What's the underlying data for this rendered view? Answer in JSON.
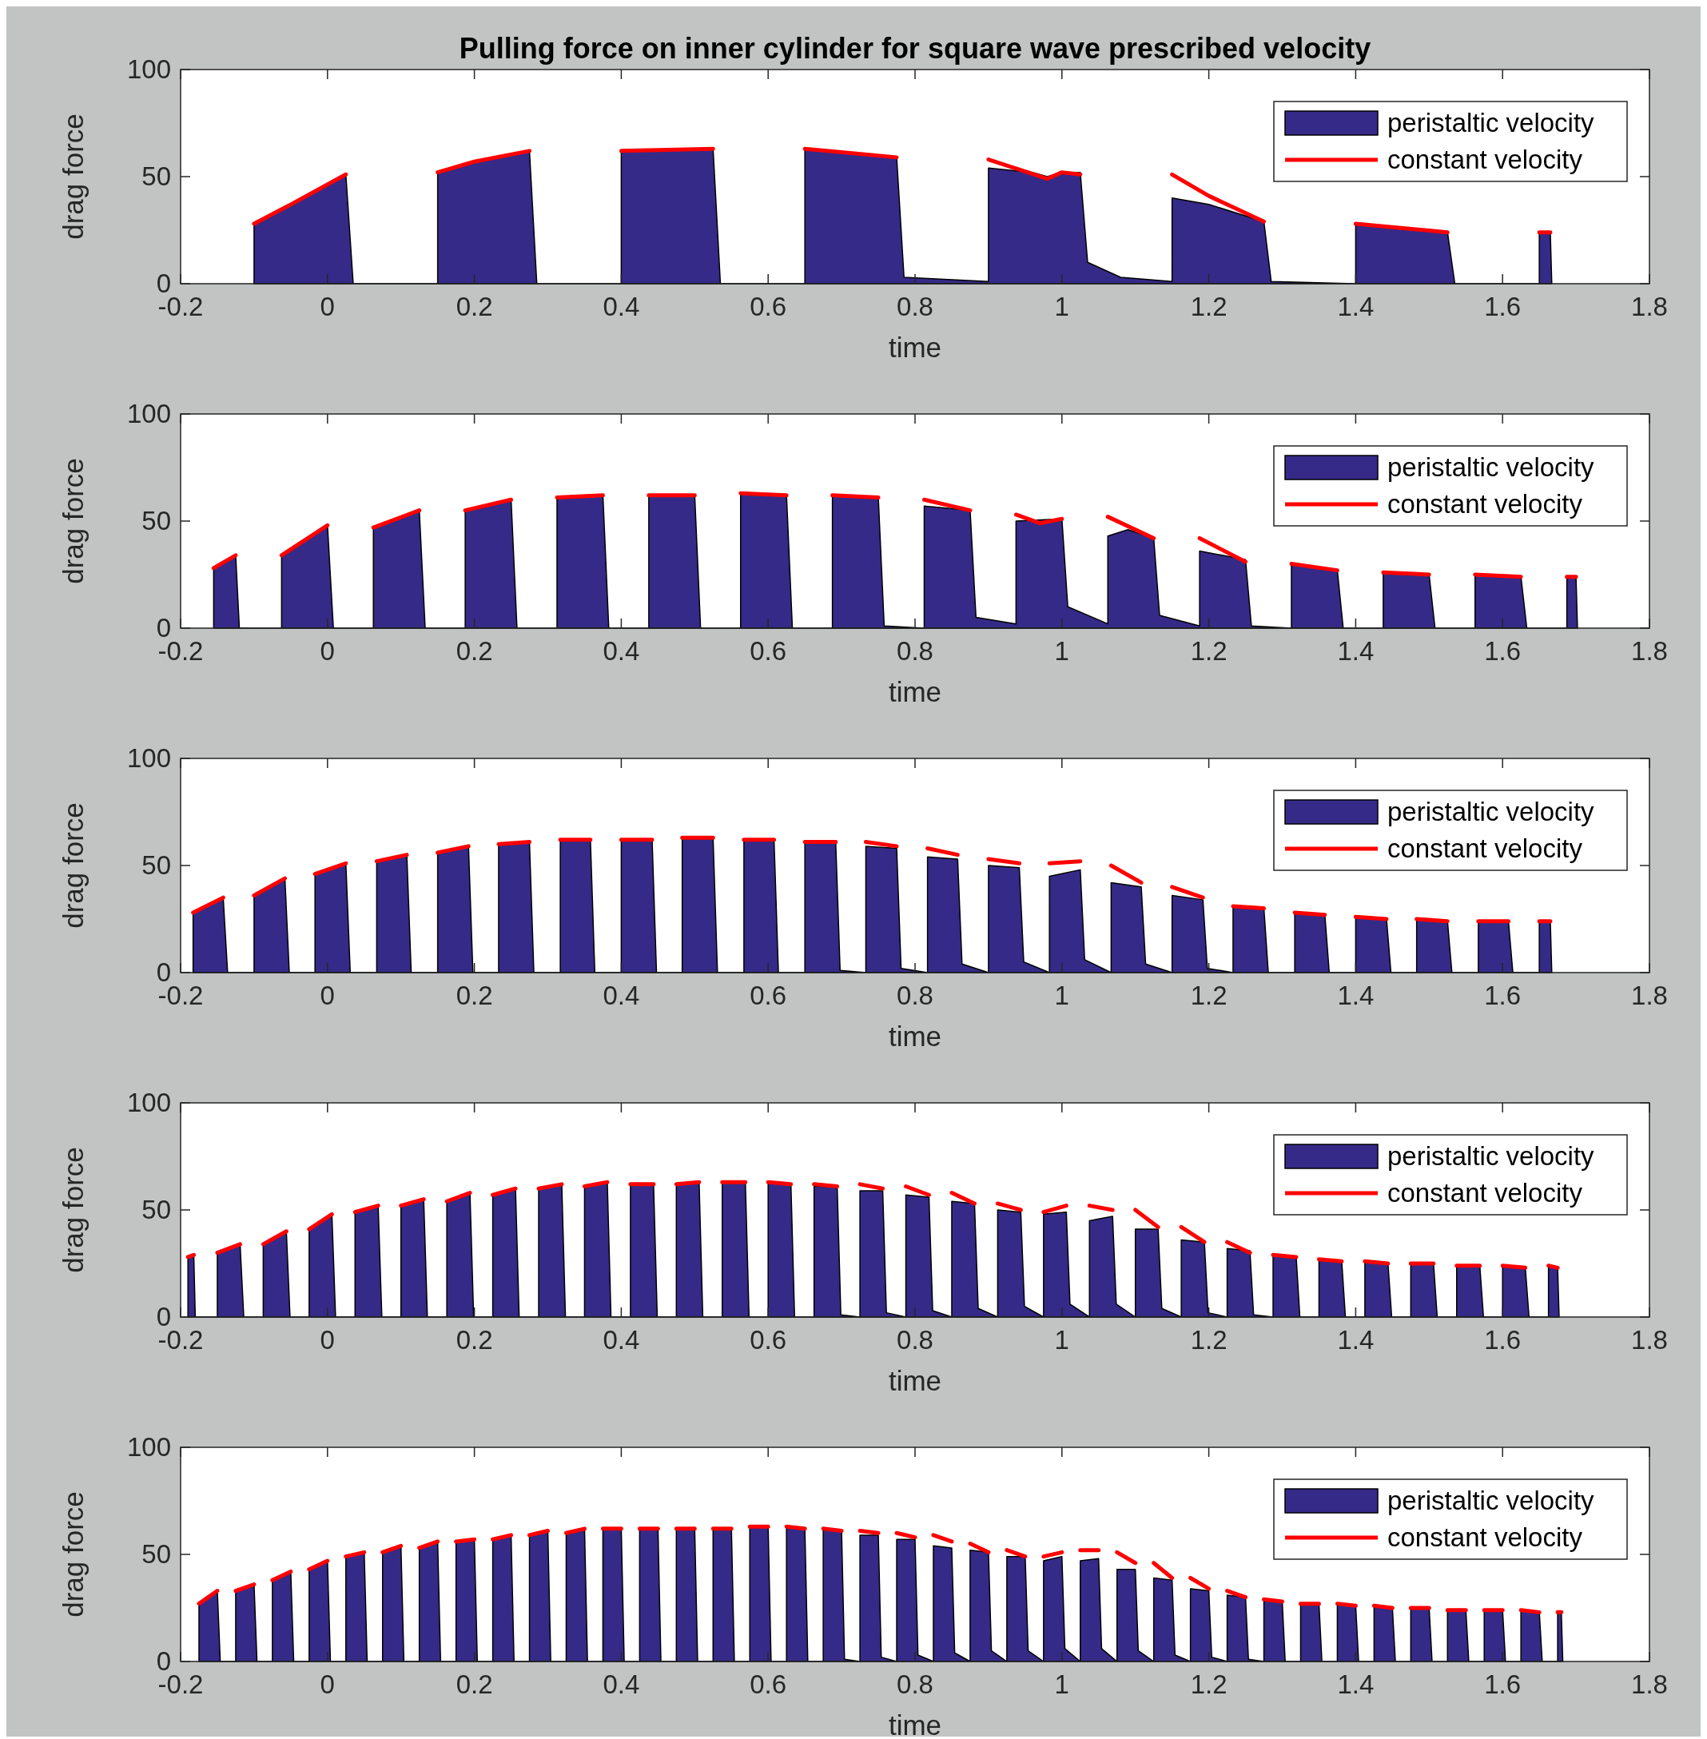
{
  "chart_data": [
    {
      "type": "area",
      "title": "Pulling force on inner cylinder for square wave prescribed velocity",
      "xlabel": "time",
      "ylabel": "drag force",
      "xlim": [
        -0.2,
        1.8
      ],
      "xticks": [
        -0.2,
        0,
        0.2,
        0.4,
        0.6,
        0.8,
        1,
        1.2,
        1.4,
        1.6,
        1.8
      ],
      "ylim": [
        0,
        100
      ],
      "yticks": [
        0,
        50,
        100
      ],
      "legend": "top right",
      "series": [
        {
          "name": "peristaltic velocity",
          "type": "area",
          "color": "#352a87",
          "x": [
            -0.1,
            -0.1,
            -0.05,
            0.025,
            0.035,
            0.15,
            0.15,
            0.2,
            0.275,
            0.285,
            0.4,
            0.4,
            0.525,
            0.535,
            0.65,
            0.65,
            0.775,
            0.785,
            0.9,
            0.9,
            0.96,
            0.98,
            1.0,
            1.025,
            1.035,
            1.08,
            1.15,
            1.15,
            1.2,
            1.275,
            1.285,
            1.4,
            1.4,
            1.525,
            1.535,
            1.65,
            1.65,
            1.665,
            1.667
          ],
          "values": [
            0,
            28,
            37,
            51,
            0,
            0,
            52,
            57,
            62,
            0,
            0,
            62,
            63,
            0,
            0,
            63,
            59,
            3,
            1,
            54,
            52,
            50,
            52,
            52,
            10,
            3,
            1,
            40,
            37,
            29,
            1,
            0,
            28,
            24,
            0,
            0,
            24,
            24,
            0
          ]
        },
        {
          "name": "constant velocity",
          "type": "line",
          "color": "#ff0000",
          "x": [
            -0.1,
            -0.05,
            0.025,
            0.08,
            0.15,
            0.2,
            0.275,
            0.33,
            0.4,
            0.525,
            0.6,
            0.65,
            0.775,
            0.85,
            0.9,
            0.98,
            1.0,
            1.025,
            1.1,
            1.15,
            1.2,
            1.275,
            1.35,
            1.4,
            1.525,
            1.6,
            1.65,
            1.665
          ],
          "values": [
            28,
            37,
            51,
            null,
            52,
            57,
            62,
            null,
            62,
            63,
            null,
            63,
            59,
            null,
            58,
            49,
            52,
            51,
            null,
            51,
            41,
            29,
            null,
            28,
            24,
            null,
            24,
            24
          ]
        }
      ]
    },
    {
      "type": "area",
      "xlabel": "time",
      "ylabel": "drag force",
      "xlim": [
        -0.2,
        1.8
      ],
      "xticks": [
        -0.2,
        0,
        0.2,
        0.4,
        0.6,
        0.8,
        1,
        1.2,
        1.4,
        1.6,
        1.8
      ],
      "ylim": [
        0,
        100
      ],
      "yticks": [
        0,
        50,
        100
      ],
      "legend": "top right",
      "series": [
        {
          "name": "peristaltic velocity",
          "type": "area",
          "color": "#352a87",
          "x": [
            -0.155,
            -0.155,
            -0.125,
            -0.12,
            -0.0625,
            -0.0625,
            0,
            0.008,
            0.0625,
            0.0625,
            0.125,
            0.133,
            0.1875,
            0.1875,
            0.25,
            0.258,
            0.3125,
            0.3125,
            0.375,
            0.383,
            0.4375,
            0.4375,
            0.5,
            0.508,
            0.5625,
            0.5625,
            0.625,
            0.633,
            0.6875,
            0.6875,
            0.75,
            0.758,
            0.8125,
            0.8125,
            0.875,
            0.883,
            0.9375,
            0.9375,
            1.0,
            1.008,
            1.0625,
            1.0625,
            1.09,
            1.125,
            1.133,
            1.1875,
            1.1875,
            1.25,
            1.258,
            1.3125,
            1.3125,
            1.375,
            1.383,
            1.4375,
            1.4375,
            1.5,
            1.508,
            1.5625,
            1.5625,
            1.625,
            1.633,
            1.6875,
            1.6875,
            1.7,
            1.702
          ],
          "values": [
            0,
            28,
            34,
            0,
            0,
            34,
            48,
            0,
            0,
            47,
            55,
            0,
            0,
            55,
            60,
            0,
            0,
            61,
            62,
            0,
            0,
            62,
            62,
            0,
            0,
            63,
            62,
            0,
            0,
            62,
            61,
            1,
            0,
            57,
            55,
            5,
            2,
            50,
            51,
            10,
            2,
            43,
            46,
            42,
            6,
            1,
            36,
            32,
            1,
            0,
            30,
            27,
            0,
            0,
            26,
            25,
            0,
            0,
            25,
            24,
            0,
            0,
            24,
            24,
            0
          ]
        },
        {
          "name": "constant velocity",
          "type": "line",
          "color": "#ff0000",
          "x": [
            -0.155,
            -0.125,
            -0.09,
            -0.0625,
            0,
            0.03,
            0.0625,
            0.125,
            0.16,
            0.1875,
            0.25,
            0.28,
            0.3125,
            0.375,
            0.41,
            0.4375,
            0.5,
            0.53,
            0.5625,
            0.625,
            0.66,
            0.6875,
            0.75,
            0.78,
            0.8125,
            0.875,
            0.91,
            0.9375,
            0.97,
            1.0,
            1.03,
            1.0625,
            1.125,
            1.16,
            1.1875,
            1.25,
            1.28,
            1.3125,
            1.375,
            1.41,
            1.4375,
            1.5,
            1.53,
            1.5625,
            1.625,
            1.66,
            1.6875,
            1.7
          ],
          "values": [
            28,
            34,
            null,
            34,
            48,
            null,
            47,
            55,
            null,
            55,
            60,
            null,
            61,
            62,
            null,
            62,
            62,
            null,
            63,
            62,
            null,
            62,
            61,
            null,
            60,
            55,
            null,
            53,
            49,
            51,
            null,
            52,
            42,
            null,
            42,
            31,
            null,
            30,
            27,
            null,
            26,
            25,
            null,
            25,
            24,
            null,
            24,
            24
          ]
        }
      ]
    },
    {
      "type": "area",
      "xlabel": "time",
      "ylabel": "drag force",
      "xlim": [
        -0.2,
        1.8
      ],
      "xticks": [
        -0.2,
        0,
        0.2,
        0.4,
        0.6,
        0.8,
        1,
        1.2,
        1.4,
        1.6,
        1.8
      ],
      "ylim": [
        0,
        100
      ],
      "yticks": [
        0,
        50,
        100
      ],
      "legend": "top right",
      "series": [
        {
          "name": "peristaltic velocity",
          "type": "area",
          "color": "#352a87",
          "x": [
            -0.183,
            -0.183,
            -0.142,
            -0.136,
            -0.1,
            -0.1,
            -0.058,
            -0.052,
            -0.017,
            -0.017,
            0.025,
            0.031,
            0.067,
            0.067,
            0.108,
            0.114,
            0.15,
            0.15,
            0.192,
            0.198,
            0.233,
            0.233,
            0.275,
            0.281,
            0.317,
            0.317,
            0.358,
            0.364,
            0.4,
            0.4,
            0.442,
            0.448,
            0.483,
            0.483,
            0.525,
            0.531,
            0.567,
            0.567,
            0.608,
            0.614,
            0.65,
            0.65,
            0.692,
            0.698,
            0.733,
            0.733,
            0.775,
            0.781,
            0.817,
            0.817,
            0.858,
            0.864,
            0.9,
            0.9,
            0.942,
            0.948,
            0.983,
            0.983,
            1.025,
            1.031,
            1.067,
            1.067,
            1.108,
            1.114,
            1.15,
            1.15,
            1.192,
            1.198,
            1.233,
            1.233,
            1.275,
            1.281,
            1.317,
            1.317,
            1.358,
            1.364,
            1.4,
            1.4,
            1.442,
            1.448,
            1.483,
            1.483,
            1.525,
            1.531,
            1.567,
            1.567,
            1.608,
            1.614,
            1.65,
            1.65,
            1.665,
            1.667
          ],
          "values": [
            0,
            28,
            35,
            0,
            0,
            36,
            44,
            0,
            0,
            46,
            51,
            0,
            0,
            52,
            55,
            0,
            0,
            56,
            59,
            0,
            0,
            60,
            61,
            0,
            0,
            62,
            62,
            0,
            0,
            62,
            62,
            0,
            0,
            63,
            63,
            0,
            0,
            62,
            62,
            0,
            0,
            61,
            61,
            1,
            0,
            59,
            58,
            2,
            0,
            54,
            53,
            4,
            0,
            50,
            49,
            5,
            0,
            45,
            48,
            6,
            0,
            42,
            40,
            4,
            0,
            36,
            34,
            2,
            0,
            31,
            30,
            0,
            0,
            28,
            27,
            0,
            0,
            26,
            25,
            0,
            0,
            25,
            24,
            0,
            0,
            24,
            24,
            0,
            0,
            24,
            24,
            0
          ]
        },
        {
          "name": "constant velocity",
          "type": "line",
          "color": "#ff0000",
          "x": [
            -0.183,
            -0.142,
            -0.12,
            -0.1,
            -0.058,
            -0.04,
            -0.017,
            0.025,
            0.045,
            0.067,
            0.108,
            0.13,
            0.15,
            0.192,
            0.21,
            0.233,
            0.275,
            0.295,
            0.317,
            0.358,
            0.38,
            0.4,
            0.442,
            0.46,
            0.483,
            0.525,
            0.545,
            0.567,
            0.608,
            0.63,
            0.65,
            0.692,
            0.71,
            0.733,
            0.775,
            0.795,
            0.817,
            0.858,
            0.88,
            0.9,
            0.942,
            0.96,
            0.983,
            1.025,
            1.045,
            1.067,
            1.108,
            1.13,
            1.15,
            1.192,
            1.21,
            1.233,
            1.275,
            1.295,
            1.317,
            1.358,
            1.38,
            1.4,
            1.442,
            1.46,
            1.483,
            1.525,
            1.545,
            1.567,
            1.608,
            1.63,
            1.65,
            1.665
          ],
          "values": [
            28,
            35,
            null,
            36,
            44,
            null,
            46,
            51,
            null,
            52,
            55,
            null,
            56,
            59,
            null,
            60,
            61,
            null,
            62,
            62,
            null,
            62,
            62,
            null,
            63,
            63,
            null,
            62,
            62,
            null,
            61,
            61,
            null,
            61,
            59,
            null,
            58,
            55,
            null,
            53,
            51,
            null,
            51,
            52,
            null,
            50,
            42,
            null,
            40,
            35,
            null,
            31,
            30,
            null,
            28,
            27,
            null,
            26,
            25,
            null,
            25,
            24,
            null,
            24,
            24,
            null,
            24,
            24
          ]
        }
      ]
    },
    {
      "type": "area",
      "xlabel": "time",
      "ylabel": "drag force",
      "xlim": [
        -0.2,
        1.8
      ],
      "xticks": [
        -0.2,
        0,
        0.2,
        0.4,
        0.6,
        0.8,
        1,
        1.2,
        1.4,
        1.6,
        1.8
      ],
      "ylim": [
        0,
        100
      ],
      "yticks": [
        0,
        50,
        100
      ],
      "legend": "top right",
      "series": [
        {
          "name": "peristaltic velocity",
          "type": "area",
          "color": "#352a87",
          "x": [
            -0.19,
            -0.19,
            -0.182,
            -0.18,
            -0.15,
            -0.15,
            -0.119,
            -0.114,
            -0.0875,
            -0.0875,
            -0.056,
            -0.051,
            -0.025,
            -0.025,
            0.006,
            0.011,
            0.0375,
            0.0375,
            0.069,
            0.074,
            0.1,
            0.1,
            0.131,
            0.136,
            0.1625,
            0.1625,
            0.194,
            0.199,
            0.225,
            0.225,
            0.256,
            0.261,
            0.2875,
            0.2875,
            0.319,
            0.324,
            0.35,
            0.35,
            0.381,
            0.386,
            0.4125,
            0.4125,
            0.444,
            0.449,
            0.475,
            0.475,
            0.506,
            0.511,
            0.5375,
            0.5375,
            0.569,
            0.574,
            0.6,
            0.6,
            0.631,
            0.636,
            0.6625,
            0.6625,
            0.694,
            0.699,
            0.725,
            0.725,
            0.756,
            0.761,
            0.7875,
            0.7875,
            0.819,
            0.824,
            0.85,
            0.85,
            0.881,
            0.886,
            0.9125,
            0.9125,
            0.944,
            0.949,
            0.975,
            0.975,
            1.006,
            1.011,
            1.0375,
            1.0375,
            1.069,
            1.074,
            1.1,
            1.1,
            1.131,
            1.136,
            1.1625,
            1.1625,
            1.194,
            1.199,
            1.225,
            1.225,
            1.256,
            1.261,
            1.2875,
            1.2875,
            1.319,
            1.324,
            1.35,
            1.35,
            1.381,
            1.386,
            1.4125,
            1.4125,
            1.444,
            1.449,
            1.475,
            1.475,
            1.506,
            1.511,
            1.5375,
            1.5375,
            1.569,
            1.574,
            1.6,
            1.6,
            1.631,
            1.636,
            1.6625,
            1.6625,
            1.675,
            1.677
          ],
          "values": [
            0,
            28,
            28,
            0,
            0,
            30,
            34,
            0,
            0,
            34,
            40,
            0,
            0,
            41,
            48,
            0,
            0,
            49,
            52,
            0,
            0,
            52,
            55,
            0,
            0,
            54,
            58,
            0,
            0,
            57,
            60,
            0,
            0,
            60,
            62,
            0,
            0,
            61,
            63,
            0,
            0,
            62,
            62,
            0,
            0,
            62,
            63,
            0,
            0,
            63,
            63,
            0,
            0,
            63,
            62,
            0,
            0,
            61,
            61,
            1,
            0,
            59,
            59,
            2,
            0,
            57,
            56,
            3,
            0,
            54,
            53,
            4,
            0,
            50,
            49,
            5,
            0,
            48,
            49,
            6,
            0,
            45,
            47,
            6,
            0,
            41,
            41,
            4,
            0,
            36,
            35,
            2,
            0,
            32,
            31,
            1,
            0,
            29,
            28,
            0,
            0,
            27,
            26,
            0,
            0,
            26,
            25,
            0,
            0,
            25,
            25,
            0,
            0,
            24,
            24,
            0,
            0,
            24,
            23,
            0,
            0,
            24,
            23,
            0
          ]
        },
        {
          "name": "constant velocity",
          "type": "line",
          "color": "#ff0000",
          "x": [
            -0.19,
            -0.182,
            -0.17,
            -0.15,
            -0.119,
            -0.105,
            -0.0875,
            -0.056,
            -0.04,
            -0.025,
            0.006,
            0.02,
            0.0375,
            0.069,
            0.085,
            0.1,
            0.131,
            0.145,
            0.1625,
            0.194,
            0.21,
            0.225,
            0.256,
            0.27,
            0.2875,
            0.319,
            0.335,
            0.35,
            0.381,
            0.395,
            0.4125,
            0.444,
            0.46,
            0.475,
            0.506,
            0.52,
            0.5375,
            0.569,
            0.585,
            0.6,
            0.631,
            0.645,
            0.6625,
            0.694,
            0.71,
            0.725,
            0.756,
            0.77,
            0.7875,
            0.819,
            0.835,
            0.85,
            0.881,
            0.895,
            0.9125,
            0.944,
            0.96,
            0.975,
            1.006,
            1.02,
            1.0375,
            1.069,
            1.085,
            1.1,
            1.131,
            1.145,
            1.1625,
            1.194,
            1.21,
            1.225,
            1.256,
            1.27,
            1.2875,
            1.319,
            1.335,
            1.35,
            1.381,
            1.395,
            1.4125,
            1.444,
            1.46,
            1.475,
            1.506,
            1.52,
            1.5375,
            1.569,
            1.585,
            1.6,
            1.631,
            1.645,
            1.6625,
            1.675
          ],
          "values": [
            28,
            29,
            null,
            30,
            34,
            null,
            34,
            40,
            null,
            41,
            48,
            null,
            49,
            52,
            null,
            52,
            55,
            null,
            54,
            58,
            null,
            57,
            60,
            null,
            60,
            62,
            null,
            61,
            63,
            null,
            62,
            62,
            null,
            62,
            63,
            null,
            63,
            63,
            null,
            63,
            62,
            null,
            62,
            61,
            null,
            62,
            60,
            null,
            61,
            57,
            null,
            58,
            53,
            null,
            53,
            50,
            null,
            49,
            52,
            null,
            52,
            50,
            null,
            50,
            42,
            null,
            42,
            35,
            null,
            35,
            30,
            null,
            29,
            28,
            null,
            27,
            26,
            null,
            26,
            25,
            null,
            25,
            25,
            null,
            24,
            24,
            null,
            24,
            23,
            null,
            24,
            23
          ]
        }
      ]
    },
    {
      "type": "area",
      "xlabel": "time",
      "ylabel": "drag force",
      "xlim": [
        -0.2,
        1.8
      ],
      "xticks": [
        -0.2,
        0,
        0.2,
        0.4,
        0.6,
        0.8,
        1,
        1.2,
        1.4,
        1.6,
        1.8
      ],
      "ylim": [
        0,
        100
      ],
      "yticks": [
        0,
        50,
        100
      ],
      "legend": "top right",
      "series": [
        {
          "name": "peristaltic velocity",
          "type": "area",
          "color": "#352a87",
          "x": [
            -0.175,
            -0.175,
            -0.15,
            -0.146,
            -0.125,
            -0.125,
            -0.1,
            -0.096,
            -0.075,
            -0.075,
            -0.05,
            -0.046,
            -0.025,
            -0.025,
            0,
            0.004,
            0.025,
            0.025,
            0.05,
            0.054,
            0.075,
            0.075,
            0.1,
            0.104,
            0.125,
            0.125,
            0.15,
            0.154,
            0.175,
            0.175,
            0.2,
            0.204,
            0.225,
            0.225,
            0.25,
            0.254,
            0.275,
            0.275,
            0.3,
            0.304,
            0.325,
            0.325,
            0.35,
            0.354,
            0.375,
            0.375,
            0.4,
            0.404,
            0.425,
            0.425,
            0.45,
            0.454,
            0.475,
            0.475,
            0.5,
            0.504,
            0.525,
            0.525,
            0.55,
            0.554,
            0.575,
            0.575,
            0.6,
            0.604,
            0.625,
            0.625,
            0.65,
            0.654,
            0.675,
            0.675,
            0.7,
            0.704,
            0.725,
            0.725,
            0.75,
            0.754,
            0.775,
            0.775,
            0.8,
            0.804,
            0.825,
            0.825,
            0.85,
            0.854,
            0.875,
            0.875,
            0.9,
            0.904,
            0.925,
            0.925,
            0.95,
            0.954,
            0.975,
            0.975,
            1,
            1.004,
            1.025,
            1.025,
            1.05,
            1.054,
            1.075,
            1.075,
            1.1,
            1.104,
            1.125,
            1.125,
            1.15,
            1.154,
            1.175,
            1.175,
            1.2,
            1.204,
            1.225,
            1.225,
            1.25,
            1.254,
            1.275,
            1.275,
            1.3,
            1.304,
            1.325,
            1.325,
            1.35,
            1.354,
            1.375,
            1.375,
            1.4,
            1.404,
            1.425,
            1.425,
            1.45,
            1.454,
            1.475,
            1.475,
            1.5,
            1.504,
            1.525,
            1.525,
            1.55,
            1.554,
            1.575,
            1.575,
            1.6,
            1.604,
            1.625,
            1.625,
            1.65,
            1.654,
            1.675,
            1.675,
            1.68,
            1.682
          ],
          "values": [
            0,
            27,
            33,
            0,
            0,
            33,
            36,
            0,
            0,
            38,
            42,
            0,
            0,
            43,
            47,
            0,
            0,
            49,
            51,
            0,
            0,
            51,
            54,
            0,
            0,
            53,
            56,
            0,
            0,
            56,
            57,
            0,
            0,
            57,
            59,
            0,
            0,
            59,
            61,
            0,
            0,
            60,
            62,
            0,
            0,
            62,
            62,
            0,
            0,
            62,
            62,
            0,
            0,
            62,
            62,
            0,
            0,
            62,
            62,
            0,
            0,
            63,
            63,
            0,
            0,
            63,
            62,
            0,
            0,
            62,
            61,
            1,
            0,
            59,
            59,
            2,
            0,
            57,
            57,
            3,
            0,
            54,
            53,
            4,
            0,
            52,
            51,
            5,
            0,
            49,
            49,
            5,
            0,
            47,
            49,
            6,
            0,
            47,
            48,
            6,
            0,
            43,
            43,
            5,
            0,
            39,
            38,
            3,
            0,
            34,
            33,
            2,
            0,
            31,
            30,
            1,
            0,
            29,
            28,
            0,
            0,
            27,
            27,
            0,
            0,
            27,
            26,
            0,
            0,
            26,
            25,
            0,
            0,
            25,
            25,
            0,
            0,
            24,
            24,
            0,
            0,
            24,
            24,
            0,
            0,
            24,
            23,
            0,
            0,
            23,
            23,
            0
          ]
        },
        {
          "name": "constant velocity",
          "type": "line",
          "color": "#ff0000",
          "x": [
            -0.175,
            -0.15,
            -0.138,
            -0.125,
            -0.1,
            -0.088,
            -0.075,
            -0.05,
            -0.038,
            -0.025,
            0,
            0.012,
            0.025,
            0.05,
            0.062,
            0.075,
            0.1,
            0.112,
            0.125,
            0.15,
            0.162,
            0.175,
            0.2,
            0.212,
            0.225,
            0.25,
            0.262,
            0.275,
            0.3,
            0.312,
            0.325,
            0.35,
            0.362,
            0.375,
            0.4,
            0.412,
            0.425,
            0.45,
            0.462,
            0.475,
            0.5,
            0.512,
            0.525,
            0.55,
            0.562,
            0.575,
            0.6,
            0.612,
            0.625,
            0.65,
            0.662,
            0.675,
            0.7,
            0.712,
            0.725,
            0.75,
            0.762,
            0.775,
            0.8,
            0.812,
            0.825,
            0.85,
            0.862,
            0.875,
            0.9,
            0.912,
            0.925,
            0.95,
            0.962,
            0.975,
            1,
            1.012,
            1.025,
            1.05,
            1.062,
            1.075,
            1.1,
            1.112,
            1.125,
            1.15,
            1.162,
            1.175,
            1.2,
            1.212,
            1.225,
            1.25,
            1.262,
            1.275,
            1.3,
            1.312,
            1.325,
            1.35,
            1.362,
            1.375,
            1.4,
            1.412,
            1.425,
            1.45,
            1.462,
            1.475,
            1.5,
            1.512,
            1.525,
            1.55,
            1.562,
            1.575,
            1.6,
            1.612,
            1.625,
            1.65,
            1.662,
            1.675,
            1.68
          ],
          "values": [
            27,
            33,
            null,
            33,
            36,
            null,
            38,
            42,
            null,
            43,
            47,
            null,
            49,
            51,
            null,
            51,
            54,
            null,
            53,
            56,
            null,
            56,
            57,
            null,
            57,
            59,
            null,
            59,
            61,
            null,
            60,
            62,
            null,
            62,
            62,
            null,
            62,
            62,
            null,
            62,
            62,
            null,
            62,
            62,
            null,
            63,
            63,
            null,
            63,
            62,
            null,
            62,
            61,
            null,
            61,
            60,
            null,
            60,
            58,
            null,
            59,
            56,
            null,
            55,
            51,
            null,
            52,
            49,
            null,
            49,
            51,
            null,
            52,
            52,
            null,
            51,
            46,
            null,
            46,
            39,
            null,
            39,
            34,
            null,
            33,
            30,
            null,
            29,
            28,
            null,
            27,
            27,
            null,
            27,
            26,
            null,
            26,
            25,
            null,
            25,
            25,
            null,
            24,
            24,
            null,
            24,
            24,
            null,
            24,
            23,
            null,
            23,
            23
          ]
        }
      ]
    }
  ]
}
